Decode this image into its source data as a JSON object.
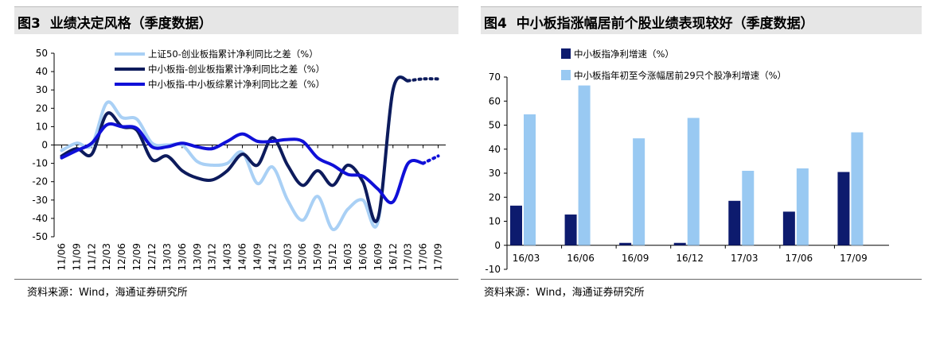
{
  "charts": {
    "left": {
      "figure_label": "图3",
      "title": "业绩决定风格（季度数据）",
      "source": "资料来源：Wind，海通证券研究所"
    },
    "right": {
      "figure_label": "图4",
      "title": "中小板指涨幅居前个股业绩表现较好（季度数据）",
      "source": "资料来源：Wind，海通证券研究所"
    }
  },
  "chart_data": [
    {
      "type": "line",
      "title": "业绩决定风格（季度数据）",
      "xlabel": "",
      "ylabel": "",
      "ylim": [
        -50,
        50
      ],
      "yticks": [
        -50,
        -40,
        -30,
        -20,
        -10,
        0,
        10,
        20,
        30,
        40,
        50
      ],
      "x": [
        "11/06",
        "11/09",
        "11/12",
        "12/03",
        "12/06",
        "12/09",
        "12/12",
        "13/03",
        "13/06",
        "13/09",
        "13/12",
        "14/03",
        "14/06",
        "14/09",
        "14/12",
        "15/03",
        "15/06",
        "15/09",
        "15/12",
        "16/03",
        "16/06",
        "16/09",
        "16/12",
        "17/03",
        "17/06",
        "17/09"
      ],
      "legend_position": "top",
      "grid": false,
      "series": [
        {
          "name": "上证50-创业板指累计净利同比之差（%）",
          "color": "#a9d0f5",
          "width": 4,
          "values": [
            -3,
            1,
            0,
            23,
            15,
            14,
            1,
            0,
            0,
            -9,
            -11,
            -10,
            -4,
            -21,
            -12,
            -30,
            -41,
            -28,
            -46,
            -35,
            -30,
            -42,
            30,
            35,
            null,
            null
          ],
          "dotted_tail": []
        },
        {
          "name": "中小板指-创业板指累计净利同比之差（%）",
          "color": "#0d1b5c",
          "width": 4,
          "values": [
            -6,
            -2,
            -5,
            17,
            10,
            8,
            -8,
            -6,
            -14,
            -18,
            -19,
            -14,
            -5,
            -11,
            4,
            -11,
            -22,
            -14,
            -22,
            -11,
            -20,
            -40,
            30,
            35,
            null,
            null
          ],
          "dotted_tail": [
            36,
            36
          ]
        },
        {
          "name": "中小板指-中小板综累计净利同比之差（%）",
          "color": "#1010d8",
          "width": 4,
          "values": [
            -7,
            -3,
            1,
            11,
            10,
            9,
            -1,
            -1,
            1,
            -1,
            -2,
            2,
            6,
            2,
            2,
            3,
            2,
            -7,
            -11,
            -16,
            -17,
            -24,
            -31,
            -10,
            -10,
            null
          ],
          "dotted_tail": [
            -6
          ]
        }
      ]
    },
    {
      "type": "bar",
      "title": "中小板指涨幅居前个股业绩表现较好（季度数据）",
      "xlabel": "",
      "ylabel": "",
      "ylim": [
        -10,
        70
      ],
      "yticks": [
        -10,
        0,
        10,
        20,
        30,
        40,
        50,
        60,
        70
      ],
      "categories": [
        "16/03",
        "16/06",
        "16/09",
        "16/12",
        "17/03",
        "17/06",
        "17/09"
      ],
      "legend_position": "top",
      "grid": false,
      "series": [
        {
          "name": "中小板指净利增速（%）",
          "color": "#0d1b6e",
          "values": [
            16.5,
            12.8,
            1,
            1,
            18.5,
            14,
            30.5
          ]
        },
        {
          "name": "中小板指年初至今涨幅居前29只个股净利增速（%）",
          "color": "#99c9f2",
          "values": [
            54.5,
            66.5,
            44.5,
            53,
            31,
            32,
            47
          ]
        }
      ]
    }
  ]
}
